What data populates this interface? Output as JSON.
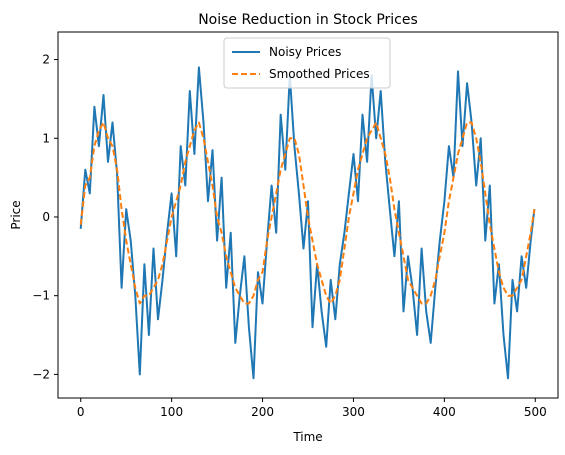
{
  "chart_data": {
    "type": "line",
    "title": "Noise Reduction in Stock Prices",
    "xlabel": "Time",
    "ylabel": "Price",
    "xlim": [
      -25,
      525
    ],
    "ylim": [
      -2.3,
      2.35
    ],
    "xticks": [
      0,
      100,
      200,
      300,
      400,
      500
    ],
    "yticks": [
      -2,
      -1,
      0,
      1,
      2
    ],
    "xtick_labels": [
      "0",
      "100",
      "200",
      "300",
      "400",
      "500"
    ],
    "ytick_labels": [
      "−2",
      "−1",
      "0",
      "1",
      "2"
    ],
    "grid": false,
    "legend_position": "top-center",
    "series": [
      {
        "name": "Noisy Prices",
        "color": "#1f77b4",
        "style": "solid"
      },
      {
        "name": "Smoothed Prices",
        "color": "#ff7f0e",
        "style": "dashed"
      }
    ],
    "x": [
      0,
      5,
      10,
      15,
      20,
      25,
      30,
      35,
      40,
      45,
      50,
      55,
      60,
      65,
      70,
      75,
      80,
      85,
      90,
      95,
      100,
      105,
      110,
      115,
      120,
      125,
      130,
      135,
      140,
      145,
      150,
      155,
      160,
      165,
      170,
      175,
      180,
      185,
      190,
      195,
      200,
      205,
      210,
      215,
      220,
      225,
      230,
      235,
      240,
      245,
      250,
      255,
      260,
      265,
      270,
      275,
      280,
      285,
      290,
      295,
      300,
      305,
      310,
      315,
      320,
      325,
      330,
      335,
      340,
      345,
      350,
      355,
      360,
      365,
      370,
      375,
      380,
      385,
      390,
      395,
      400,
      405,
      410,
      415,
      420,
      425,
      430,
      435,
      440,
      445,
      450,
      455,
      460,
      465,
      470,
      475,
      480,
      485,
      490,
      495,
      499
    ],
    "noisy_values": [
      -0.15,
      0.6,
      0.3,
      1.4,
      0.9,
      1.55,
      0.7,
      1.2,
      0.55,
      -0.9,
      0.1,
      -0.3,
      -1.0,
      -2.0,
      -0.6,
      -1.5,
      -0.4,
      -1.3,
      -0.8,
      -0.2,
      0.3,
      -0.5,
      0.9,
      0.4,
      1.6,
      0.8,
      1.9,
      1.2,
      0.2,
      0.85,
      -0.3,
      0.5,
      -0.9,
      -0.2,
      -1.6,
      -1.0,
      -0.5,
      -1.4,
      -2.05,
      -0.7,
      -1.1,
      -0.3,
      0.4,
      -0.2,
      1.3,
      0.6,
      1.8,
      0.9,
      0.3,
      -0.4,
      0.2,
      -1.4,
      -0.6,
      -1.2,
      -1.65,
      -0.8,
      -1.3,
      -0.6,
      -0.2,
      0.3,
      0.8,
      0.2,
      1.3,
      0.7,
      1.8,
      1.0,
      1.6,
      0.7,
      0.1,
      -0.5,
      0.2,
      -1.2,
      -0.5,
      -0.9,
      -1.5,
      -0.4,
      -1.2,
      -1.6,
      -0.9,
      -0.3,
      0.2,
      0.9,
      0.5,
      1.85,
      0.9,
      1.7,
      1.2,
      0.4,
      1.0,
      -0.3,
      0.4,
      -1.1,
      -0.6,
      -1.5,
      -2.05,
      -0.8,
      -1.2,
      -0.5,
      -0.9,
      -0.3,
      0.1
    ],
    "smoothed_values": [
      -0.1,
      0.4,
      0.5,
      0.9,
      1.1,
      1.2,
      1.0,
      0.9,
      0.6,
      0.1,
      -0.3,
      -0.6,
      -0.9,
      -1.1,
      -1.0,
      -1.0,
      -0.9,
      -0.8,
      -0.6,
      -0.3,
      0.0,
      0.2,
      0.4,
      0.7,
      0.9,
      1.1,
      1.2,
      1.0,
      0.7,
      0.4,
      0.0,
      -0.2,
      -0.5,
      -0.7,
      -0.9,
      -1.0,
      -1.1,
      -1.1,
      -1.0,
      -0.8,
      -0.7,
      -0.3,
      0.0,
      0.3,
      0.6,
      0.8,
      1.0,
      1.0,
      0.8,
      0.4,
      0.0,
      -0.3,
      -0.6,
      -0.8,
      -1.0,
      -1.1,
      -1.0,
      -0.8,
      -0.4,
      0.0,
      0.3,
      0.6,
      0.8,
      1.0,
      1.1,
      1.2,
      1.0,
      0.8,
      0.5,
      0.1,
      -0.2,
      -0.5,
      -0.8,
      -0.9,
      -1.0,
      -1.1,
      -1.1,
      -1.0,
      -0.8,
      -0.5,
      -0.2,
      0.2,
      0.5,
      0.8,
      1.0,
      1.2,
      1.2,
      1.0,
      0.7,
      0.3,
      -0.1,
      -0.4,
      -0.7,
      -0.9,
      -1.0,
      -1.0,
      -0.9,
      -0.8,
      -0.5,
      -0.2,
      0.1
    ]
  }
}
